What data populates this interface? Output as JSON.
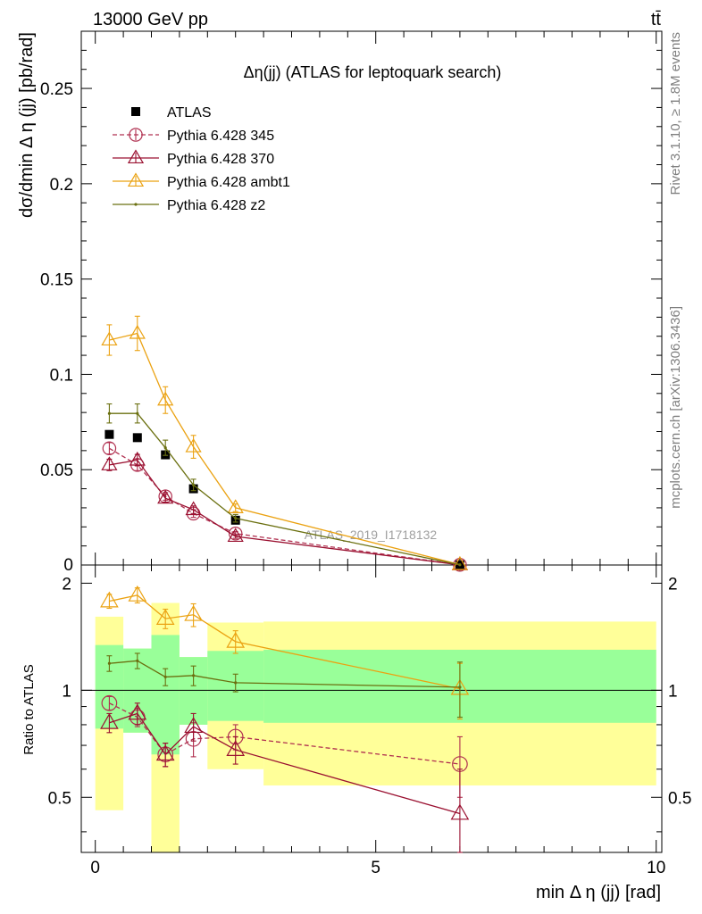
{
  "header": {
    "left": "13000 GeV pp",
    "right": "tt̄"
  },
  "side_labels": {
    "rivet": "Rivet 3.1.10, ≥ 1.8M events",
    "mcplots": "mcplots.cern.ch [arXiv:1306.3436]"
  },
  "chart_data": [
    {
      "type": "scatter",
      "title": "Δη(jj) (ATLAS for leptoquark search)",
      "ylabel": "dσ/dmin Δ η (jj) [pb/rad]",
      "xlabel": "",
      "xlim": [
        -0.25,
        10.1
      ],
      "ylim": [
        0,
        0.28
      ],
      "yticks": [
        0.05,
        0.1,
        0.15,
        0.2,
        0.25
      ],
      "ytick_labels": [
        "0.05",
        "0.1",
        "0.15",
        "0.2",
        "0.25"
      ],
      "ytick_zero_label": "0",
      "watermark": "ATLAS_2019_I1718132",
      "legend_position": "top-left",
      "x": [
        0.25,
        0.75,
        1.25,
        1.75,
        2.5,
        6.5
      ],
      "series": [
        {
          "name": "ATLAS",
          "color": "#000000",
          "marker": "square",
          "line": "none",
          "values": [
            0.0685,
            0.0668,
            0.0578,
            0.04,
            0.0235,
            0.0001
          ],
          "errors": [
            0.0,
            0.0,
            0.0,
            0.0,
            0.0,
            0.0
          ]
        },
        {
          "name": "Pythia 6.428 345",
          "color": "#b03050",
          "marker": "circle",
          "line": "dashed",
          "values": [
            0.0612,
            0.0525,
            0.036,
            0.027,
            0.0165,
            0.0001
          ],
          "errors": [
            0.003,
            0.003,
            0.002,
            0.002,
            0.001,
            0.0
          ]
        },
        {
          "name": "Pythia 6.428 370",
          "color": "#9a1030",
          "marker": "triangle",
          "line": "solid",
          "values": [
            0.0525,
            0.055,
            0.035,
            0.029,
            0.015,
            0.0001
          ],
          "errors": [
            0.003,
            0.003,
            0.002,
            0.002,
            0.001,
            0.0
          ]
        },
        {
          "name": "Pythia 6.428 ambt1",
          "color": "#eba212",
          "marker": "triangle",
          "line": "solid",
          "values": [
            0.118,
            0.1215,
            0.0865,
            0.062,
            0.03,
            0.0002
          ],
          "errors": [
            0.008,
            0.009,
            0.007,
            0.006,
            0.002,
            0.0
          ]
        },
        {
          "name": "Pythia 6.428 z2",
          "color": "#6b7010",
          "marker": "dot",
          "line": "solid",
          "values": [
            0.0795,
            0.0795,
            0.0615,
            0.042,
            0.0245,
            0.0001
          ],
          "errors": [
            0.005,
            0.005,
            0.004,
            0.003,
            0.002,
            0.0
          ]
        }
      ]
    },
    {
      "type": "scatter",
      "title": "",
      "xlabel": "min Δ η (jj) [rad]",
      "ylabel": "Ratio to ATLAS",
      "xlim": [
        -0.25,
        10.1
      ],
      "ylim": [
        0.35,
        2.25
      ],
      "xticks": [
        0,
        5,
        10
      ],
      "xtick_labels": [
        "0",
        "5",
        "10"
      ],
      "yticks": [
        0.5,
        1,
        2
      ],
      "ytick_labels": [
        "0.5",
        "1",
        "2"
      ],
      "bins": [
        {
          "lo": 0.0,
          "hi": 0.5,
          "green": [
            0.78,
            1.34
          ],
          "yellow": [
            0.46,
            1.61
          ]
        },
        {
          "lo": 0.5,
          "hi": 1.0,
          "green": [
            0.76,
            1.31
          ],
          "yellow": [
            0.76,
            1.31
          ]
        },
        {
          "lo": 1.0,
          "hi": 1.5,
          "green": [
            0.66,
            1.43
          ],
          "yellow": [
            0.35,
            1.76
          ]
        },
        {
          "lo": 1.5,
          "hi": 2.0,
          "green": [
            0.8,
            1.24
          ],
          "yellow": [
            0.8,
            1.24
          ]
        },
        {
          "lo": 2.0,
          "hi": 3.0,
          "green": [
            0.82,
            1.29
          ],
          "yellow": [
            0.6,
            1.55
          ]
        },
        {
          "lo": 3.0,
          "hi": 10.0,
          "green": [
            0.81,
            1.3
          ],
          "yellow": [
            0.54,
            1.56
          ]
        }
      ],
      "x": [
        0.25,
        0.75,
        1.25,
        1.75,
        2.5,
        6.5
      ],
      "series": [
        {
          "name": "Pythia 6.428 345",
          "color": "#b03050",
          "marker": "circle",
          "line": "dashed",
          "values": [
            0.92,
            0.84,
            0.66,
            0.73,
            0.74,
            0.62
          ],
          "errors": [
            0.04,
            0.05,
            0.05,
            0.08,
            0.06,
            0.12
          ]
        },
        {
          "name": "Pythia 6.428 370",
          "color": "#9a1030",
          "marker": "triangle",
          "line": "solid",
          "values": [
            0.81,
            0.86,
            0.66,
            0.79,
            0.68,
            0.45
          ],
          "errors": [
            0.05,
            0.06,
            0.05,
            0.07,
            0.06,
            0.15
          ]
        },
        {
          "name": "Pythia 6.428 ambt1",
          "color": "#eba212",
          "marker": "triangle",
          "line": "solid",
          "values": [
            1.78,
            1.85,
            1.59,
            1.63,
            1.37,
            1.01
          ],
          "errors": [
            0.08,
            0.09,
            0.1,
            0.12,
            0.1,
            0.18
          ]
        },
        {
          "name": "Pythia 6.428 z2",
          "color": "#6b7010",
          "marker": "dot",
          "line": "solid",
          "values": [
            1.19,
            1.21,
            1.09,
            1.1,
            1.05,
            1.02
          ],
          "errors": [
            0.06,
            0.06,
            0.06,
            0.07,
            0.06,
            0.18
          ]
        }
      ]
    }
  ]
}
